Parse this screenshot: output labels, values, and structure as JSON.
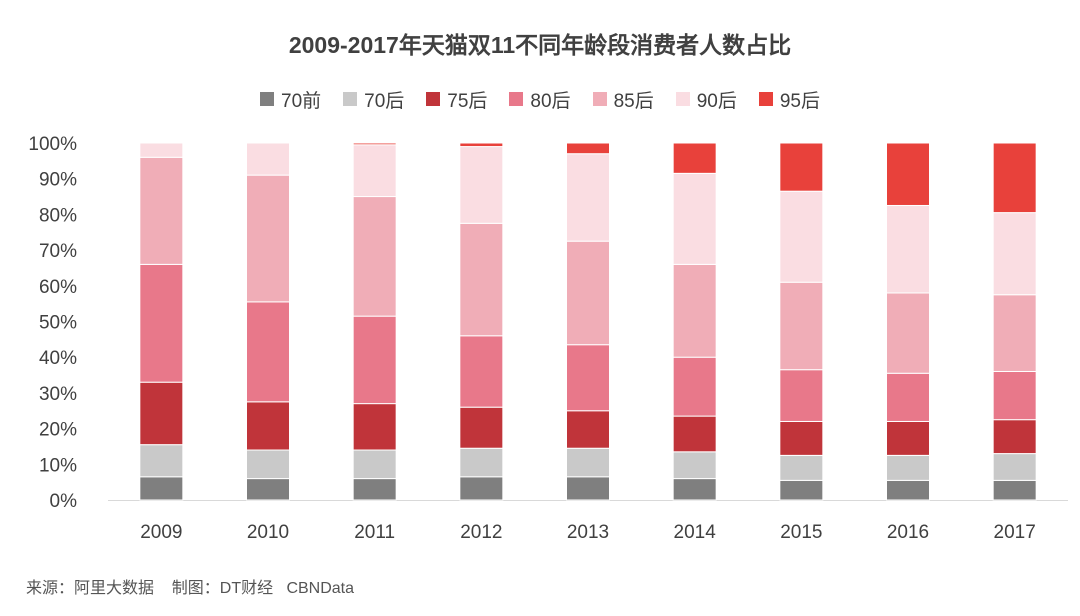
{
  "chart_data": {
    "type": "bar",
    "stacked": true,
    "title": "2009-2017年天猫双11不同年龄段消费者人数占比",
    "categories": [
      "2009",
      "2010",
      "2011",
      "2012",
      "2013",
      "2014",
      "2015",
      "2016",
      "2017"
    ],
    "y_ticks": [
      "0%",
      "10%",
      "20%",
      "30%",
      "40%",
      "50%",
      "60%",
      "70%",
      "80%",
      "90%",
      "100%"
    ],
    "ylim": [
      0,
      100
    ],
    "grid": false,
    "legend_position": "top",
    "series": [
      {
        "name": "70前",
        "color": "#7f7f7f",
        "values": [
          6.5,
          6,
          6,
          6.5,
          6.5,
          6,
          5.5,
          5.5,
          5.5
        ]
      },
      {
        "name": "70后",
        "color": "#c9c9c9",
        "values": [
          9,
          8,
          8,
          8,
          8,
          7.5,
          7,
          7,
          7.5
        ]
      },
      {
        "name": "75后",
        "color": "#c0343a",
        "values": [
          17.5,
          13.5,
          13,
          11.5,
          10.5,
          10,
          9.5,
          9.5,
          9.5
        ]
      },
      {
        "name": "80后",
        "color": "#e8788a",
        "values": [
          33,
          28,
          24.5,
          20,
          18.5,
          16.5,
          14.5,
          13.5,
          13.5
        ]
      },
      {
        "name": "85后",
        "color": "#f0adb7",
        "values": [
          30,
          35.5,
          33.5,
          31.5,
          29,
          26,
          24.5,
          22.5,
          21.5
        ]
      },
      {
        "name": "90后",
        "color": "#fadde2",
        "values": [
          4,
          9,
          14.5,
          21.5,
          24.5,
          25.5,
          25.5,
          24.5,
          23
        ]
      },
      {
        "name": "95后",
        "color": "#e8413b",
        "values": [
          0,
          0,
          0.5,
          1,
          3,
          8.5,
          13.5,
          17.5,
          19.5
        ]
      }
    ]
  },
  "source_text": "来源：阿里大数据    制图：DT财经   CBNData"
}
